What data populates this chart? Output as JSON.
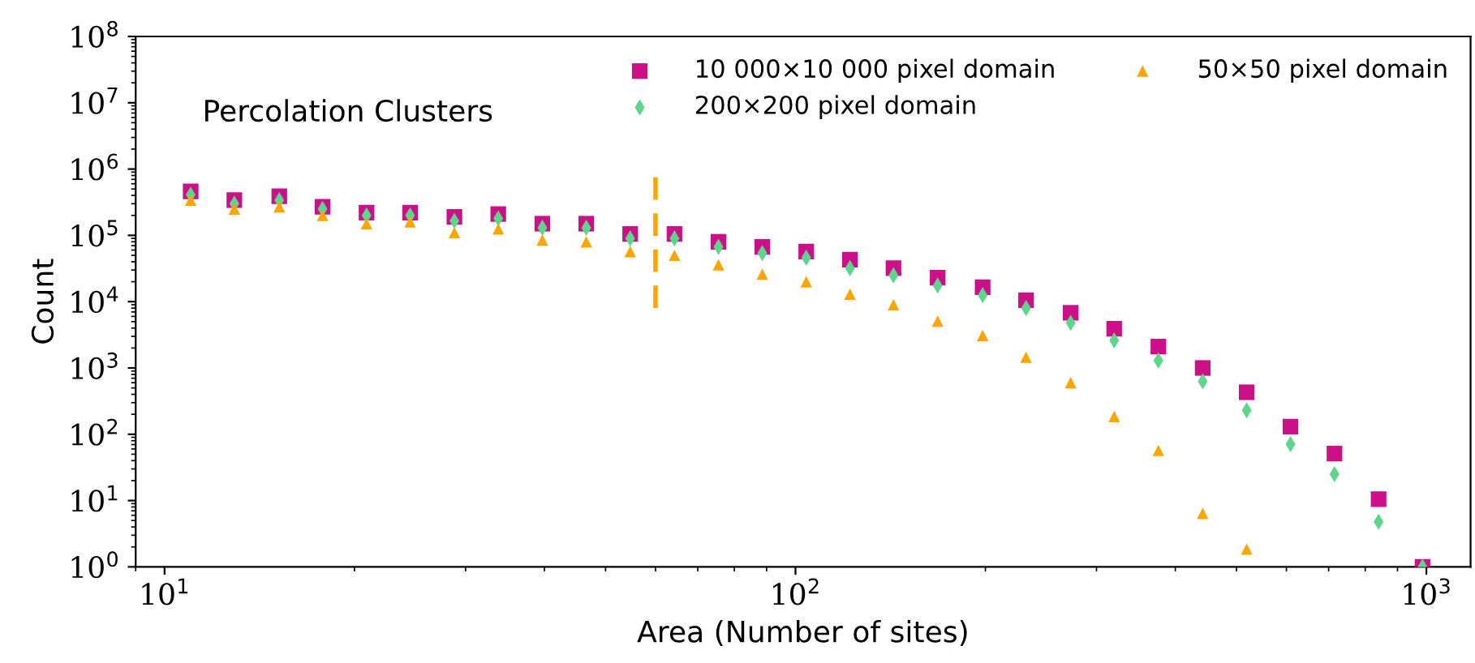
{
  "chart_data": {
    "type": "scatter",
    "xlabel": "Area (Number of sites)",
    "ylabel": "Count",
    "annotations": [
      "Percolation Clusters"
    ],
    "log": "xy",
    "legend": "top right",
    "grid": false,
    "xlim": [
      9.0,
      1175
    ],
    "ylim": [
      1,
      100000000
    ],
    "xticks": [
      {
        "value": 10,
        "label": "10$^{1}$"
      },
      {
        "value": 100,
        "label": "10$^{2}$"
      },
      {
        "value": 1000,
        "label": "10$^{3}$"
      }
    ],
    "yticks": [
      {
        "value": 1,
        "label": "10$^{0}$"
      },
      {
        "value": 10,
        "label": "10$^{1}$"
      },
      {
        "value": 100,
        "label": "10$^{2}$"
      },
      {
        "value": 1000,
        "label": "10$^{3}$"
      },
      {
        "value": 10000,
        "label": "10$^{4}$"
      },
      {
        "value": 100000,
        "label": "10$^{5}$"
      },
      {
        "value": 1000000,
        "label": "10$^{6}$"
      },
      {
        "value": 10000000,
        "label": "10$^{7}$"
      },
      {
        "value": 100000000,
        "label": "10$^{8}$"
      }
    ],
    "x": [
      11,
      12.9,
      15.2,
      17.8,
      20.9,
      24.5,
      28.8,
      33.8,
      39.7,
      46.6,
      54.7,
      64.3,
      75.5,
      88.6,
      104,
      122,
      143,
      168,
      198,
      232,
      273,
      320,
      376,
      442,
      519,
      609,
      715,
      840,
      986
    ],
    "series": [
      {
        "name": "10 000×10 000 pixel domain",
        "color": "#cc1188",
        "marker": "square",
        "values": [
          460000,
          340000,
          390000,
          270000,
          220000,
          220000,
          190000,
          210000,
          150000,
          150000,
          105000,
          105000,
          80000,
          67000,
          57000,
          43000,
          32000,
          23000,
          16500,
          10500,
          6800,
          3900,
          2100,
          1000,
          430,
          130,
          51,
          10.5,
          1
        ]
      },
      {
        "name": "200×200 pixel domain",
        "color": "#5dd68c",
        "marker": "diamond",
        "values": [
          410000,
          300000,
          340000,
          250000,
          200000,
          200000,
          165000,
          180000,
          130000,
          130000,
          90000,
          90000,
          67000,
          54000,
          46000,
          32000,
          25000,
          17500,
          12500,
          8000,
          4800,
          2600,
          1300,
          630,
          230,
          71,
          25,
          4.8,
          1
        ]
      },
      {
        "name": "50×50 pixel domain",
        "color": "#ffa500",
        "marker": "triangle",
        "values": [
          340000,
          250000,
          270000,
          200000,
          150000,
          160000,
          110000,
          125000,
          85000,
          80000,
          57000,
          50000,
          36000,
          26000,
          20000,
          13000,
          9000,
          5100,
          3100,
          1450,
          600,
          185,
          57,
          6.4,
          1.85,
          null,
          null,
          null,
          null
        ]
      },
      {
        "type": "line",
        "color": "#ffa500",
        "line_style": "dashed",
        "x": [
          60,
          60
        ],
        "values": [
          750000,
          7600
        ]
      }
    ]
  }
}
